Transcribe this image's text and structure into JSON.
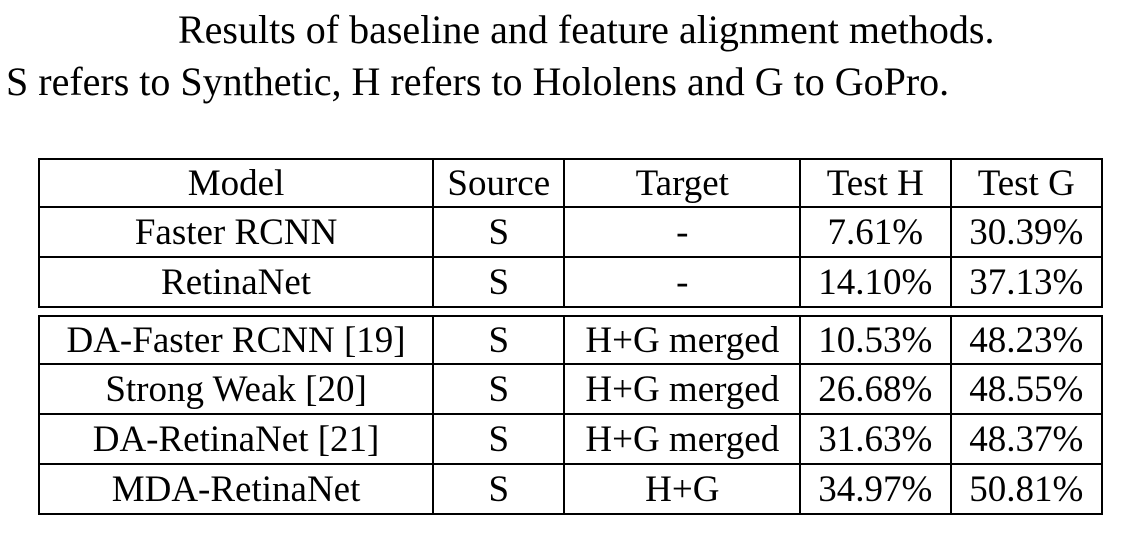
{
  "caption": {
    "line1": "Results of baseline and feature alignment methods.",
    "line2": "S refers to Synthetic, H refers to Hololens and G to GoPro."
  },
  "table": {
    "headers": [
      "Model",
      "Source",
      "Target",
      "Test H",
      "Test G"
    ],
    "group1": [
      {
        "model": "Faster RCNN",
        "source": "S",
        "target": "-",
        "test_h": "7.61%",
        "test_g": "30.39%"
      },
      {
        "model": "RetinaNet",
        "source": "S",
        "target": "-",
        "test_h": "14.10%",
        "test_g": "37.13%"
      }
    ],
    "group2": [
      {
        "model": "DA-Faster RCNN [19]",
        "source": "S",
        "target": "H+G merged",
        "test_h": "10.53%",
        "test_g": "48.23%"
      },
      {
        "model": "Strong Weak [20]",
        "source": "S",
        "target": "H+G merged",
        "test_h": "26.68%",
        "test_g": "48.55%"
      },
      {
        "model": "DA-RetinaNet [21]",
        "source": "S",
        "target": "H+G merged",
        "test_h": "31.63%",
        "test_g": "48.37%"
      },
      {
        "model": "MDA-RetinaNet",
        "source": "S",
        "target": "H+G",
        "test_h": "34.97%",
        "test_g": "50.81%"
      }
    ]
  }
}
